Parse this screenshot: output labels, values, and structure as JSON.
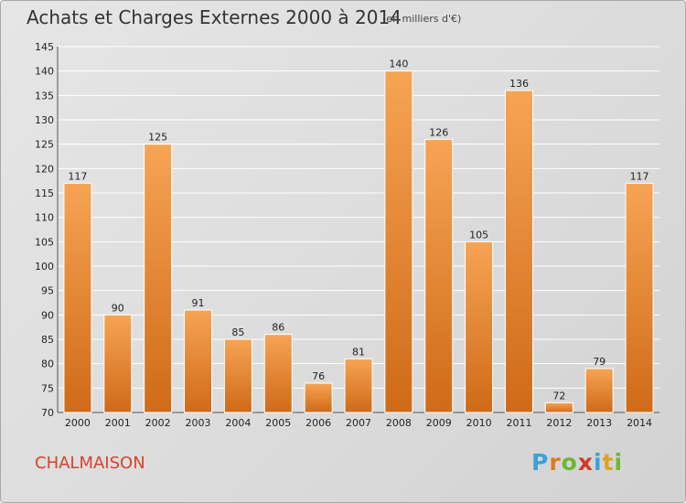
{
  "title": "Achats et Charges Externes 2000 à 2014",
  "unit_note": "(en milliers d'€)",
  "commune": "CHALMAISON",
  "brand": {
    "text": "Proxiti",
    "letters": [
      {
        "char": "P",
        "color": "#3aa3d6"
      },
      {
        "char": "r",
        "color": "#e07a1f"
      },
      {
        "char": "o",
        "color": "#6bb832"
      },
      {
        "char": "x",
        "color": "#d23a2a"
      },
      {
        "char": "i",
        "color": "#3aa3d6"
      },
      {
        "char": "t",
        "color": "#e0a21f"
      },
      {
        "char": "i",
        "color": "#6bb832"
      }
    ]
  },
  "colors": {
    "bar_light": "#f6a454",
    "bar_dark": "#cf6a18",
    "grid": "#ffffff",
    "axis_text": "#222222"
  },
  "chart_data": {
    "type": "bar",
    "title": "Achats et Charges Externes 2000 à 2014",
    "categories": [
      "2000",
      "2001",
      "2002",
      "2003",
      "2004",
      "2005",
      "2006",
      "2007",
      "2008",
      "2009",
      "2010",
      "2011",
      "2012",
      "2013",
      "2014"
    ],
    "values": [
      117,
      90,
      125,
      91,
      85,
      86,
      76,
      81,
      140,
      126,
      105,
      136,
      72,
      79,
      117
    ],
    "ylim": [
      70,
      145
    ],
    "yticks": [
      70,
      75,
      80,
      85,
      90,
      95,
      100,
      105,
      110,
      115,
      120,
      125,
      130,
      135,
      140,
      145
    ],
    "grid": true,
    "legend": "none"
  }
}
